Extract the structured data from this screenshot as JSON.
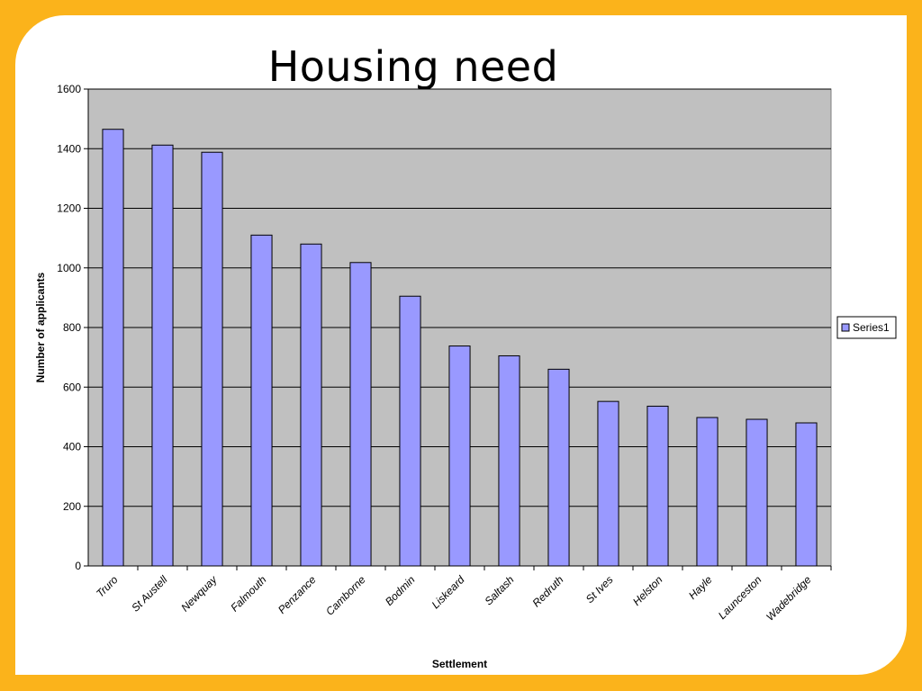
{
  "slide": {
    "title": "Housing need"
  },
  "chart_data": {
    "type": "bar",
    "title": "",
    "xlabel": "Settlement",
    "ylabel": "Number of applicants",
    "ylim": [
      0,
      1600
    ],
    "yticks": [
      0,
      200,
      400,
      600,
      800,
      1000,
      1200,
      1400,
      1600
    ],
    "grid": true,
    "legend_position": "right",
    "categories": [
      "Truro",
      "St Austell",
      "Newquay",
      "Falmouth",
      "Penzance",
      "Camborne",
      "Bodmin",
      "Liskeard",
      "Saltash",
      "Redruth",
      "St Ives",
      "Helston",
      "Hayle",
      "Launceston",
      "Wadebridge"
    ],
    "series": [
      {
        "name": "Series1",
        "color": "#9999ff",
        "values": [
          1465,
          1412,
          1388,
          1110,
          1080,
          1018,
          905,
          738,
          705,
          660,
          552,
          536,
          498,
          492,
          480
        ]
      }
    ],
    "plot_background": "#c0c0c0"
  }
}
